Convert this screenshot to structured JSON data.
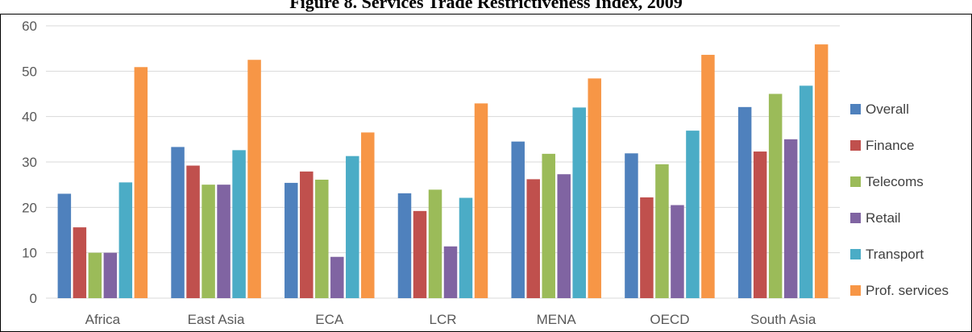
{
  "chart_data": {
    "type": "bar",
    "title": "Figure 8. Services Trade Restrictiveness Index, 2009",
    "categories": [
      "Africa",
      "East Asia",
      "ECA",
      "LCR",
      "MENA",
      "OECD",
      "South Asia"
    ],
    "ylim": [
      0,
      60
    ],
    "yticks": [
      0,
      10,
      20,
      30,
      40,
      50,
      60
    ],
    "grid": true,
    "legend_position": "right",
    "series": [
      {
        "name": "Overall",
        "color": "#4F81BD",
        "values": [
          23,
          33.3,
          25.4,
          23.1,
          34.5,
          31.9,
          42.1
        ]
      },
      {
        "name": "Finance",
        "color": "#C0504D",
        "values": [
          15.6,
          29.2,
          27.9,
          19.2,
          26.2,
          22.2,
          32.3
        ]
      },
      {
        "name": "Telecoms",
        "color": "#9BBB59",
        "values": [
          10,
          25,
          26.1,
          23.9,
          31.8,
          29.5,
          45
        ]
      },
      {
        "name": "Retail",
        "color": "#8064A2",
        "values": [
          10,
          25,
          9.1,
          11.4,
          27.3,
          20.5,
          35
        ]
      },
      {
        "name": "Transport",
        "color": "#4BACC6",
        "values": [
          25.5,
          32.6,
          31.3,
          22.1,
          42,
          36.9,
          46.8
        ]
      },
      {
        "name": "Prof. services",
        "color": "#F79646",
        "values": [
          50.9,
          52.5,
          36.5,
          42.9,
          48.4,
          53.6,
          55.9
        ]
      }
    ]
  }
}
